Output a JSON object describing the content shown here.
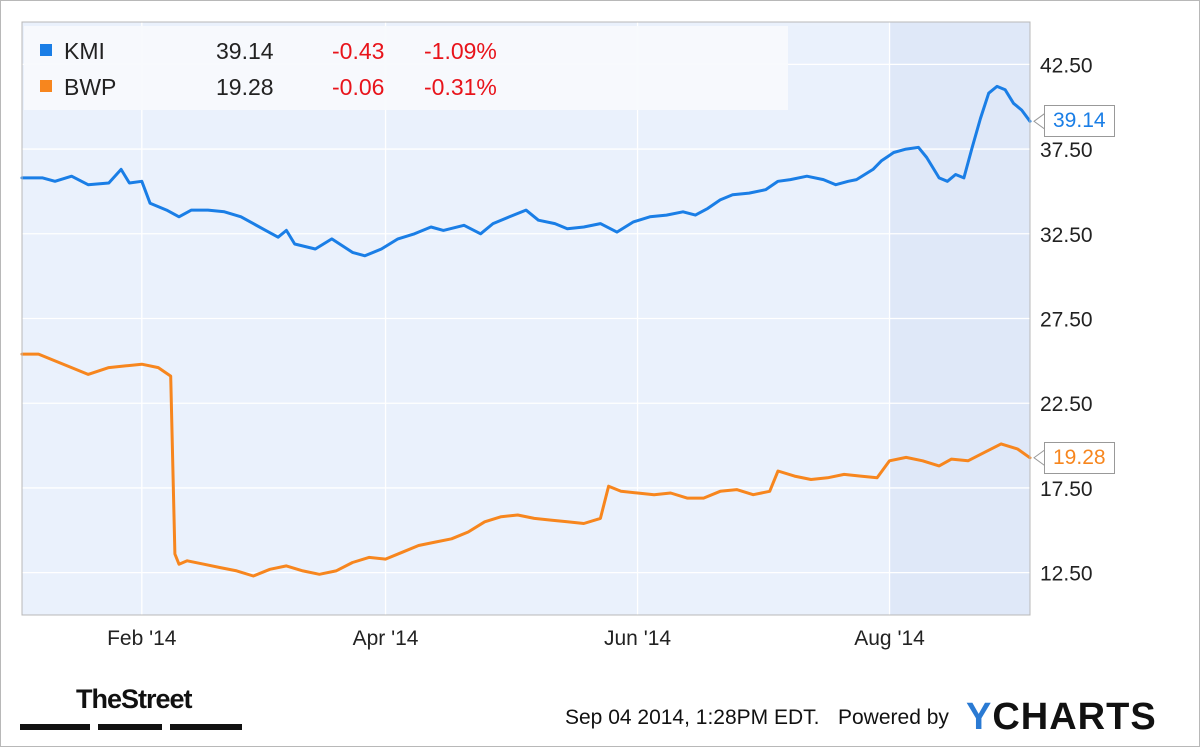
{
  "chart_data": {
    "type": "line",
    "xlim": [
      "2014-01-03",
      "2014-09-04"
    ],
    "ylim": [
      10.0,
      45.0
    ],
    "y_ticks": [
      "42.50",
      "37.50",
      "32.50",
      "27.50",
      "22.50",
      "17.50",
      "12.50"
    ],
    "x_ticks": [
      {
        "date": "2014-02-01",
        "label": "Feb '14"
      },
      {
        "date": "2014-04-01",
        "label": "Apr '14"
      },
      {
        "date": "2014-06-01",
        "label": "Jun '14"
      },
      {
        "date": "2014-08-01",
        "label": "Aug '14"
      }
    ],
    "grid": true,
    "legend": "top-left",
    "series": [
      {
        "name": "KMI",
        "color": "#1a7ee6",
        "last_label": "39.14",
        "points": [
          [
            "2014-01-03",
            35.8
          ],
          [
            "2014-01-08",
            35.8
          ],
          [
            "2014-01-11",
            35.6
          ],
          [
            "2014-01-15",
            35.9
          ],
          [
            "2014-01-19",
            35.4
          ],
          [
            "2014-01-24",
            35.5
          ],
          [
            "2014-01-27",
            36.3
          ],
          [
            "2014-01-29",
            35.5
          ],
          [
            "2014-02-01",
            35.6
          ],
          [
            "2014-02-03",
            34.3
          ],
          [
            "2014-02-07",
            33.9
          ],
          [
            "2014-02-10",
            33.5
          ],
          [
            "2014-02-13",
            33.9
          ],
          [
            "2014-02-17",
            33.9
          ],
          [
            "2014-02-21",
            33.8
          ],
          [
            "2014-02-25",
            33.5
          ],
          [
            "2014-02-28",
            33.1
          ],
          [
            "2014-03-03",
            32.7
          ],
          [
            "2014-03-06",
            32.3
          ],
          [
            "2014-03-08",
            32.7
          ],
          [
            "2014-03-10",
            31.9
          ],
          [
            "2014-03-15",
            31.6
          ],
          [
            "2014-03-19",
            32.2
          ],
          [
            "2014-03-24",
            31.4
          ],
          [
            "2014-03-27",
            31.2
          ],
          [
            "2014-03-31",
            31.6
          ],
          [
            "2014-04-04",
            32.2
          ],
          [
            "2014-04-08",
            32.5
          ],
          [
            "2014-04-12",
            32.9
          ],
          [
            "2014-04-15",
            32.7
          ],
          [
            "2014-04-20",
            33.0
          ],
          [
            "2014-04-24",
            32.5
          ],
          [
            "2014-04-27",
            33.1
          ],
          [
            "2014-05-01",
            33.5
          ],
          [
            "2014-05-05",
            33.9
          ],
          [
            "2014-05-08",
            33.3
          ],
          [
            "2014-05-12",
            33.1
          ],
          [
            "2014-05-15",
            32.8
          ],
          [
            "2014-05-19",
            32.9
          ],
          [
            "2014-05-23",
            33.1
          ],
          [
            "2014-05-27",
            32.6
          ],
          [
            "2014-05-31",
            33.2
          ],
          [
            "2014-06-04",
            33.5
          ],
          [
            "2014-06-08",
            33.6
          ],
          [
            "2014-06-12",
            33.8
          ],
          [
            "2014-06-15",
            33.6
          ],
          [
            "2014-06-18",
            34.0
          ],
          [
            "2014-06-21",
            34.5
          ],
          [
            "2014-06-24",
            34.8
          ],
          [
            "2014-06-28",
            34.9
          ],
          [
            "2014-07-02",
            35.1
          ],
          [
            "2014-07-05",
            35.6
          ],
          [
            "2014-07-08",
            35.7
          ],
          [
            "2014-07-12",
            35.9
          ],
          [
            "2014-07-16",
            35.7
          ],
          [
            "2014-07-19",
            35.4
          ],
          [
            "2014-07-22",
            35.6
          ],
          [
            "2014-07-24",
            35.7
          ],
          [
            "2014-07-28",
            36.3
          ],
          [
            "2014-07-30",
            36.8
          ],
          [
            "2014-08-02",
            37.3
          ],
          [
            "2014-08-05",
            37.5
          ],
          [
            "2014-08-08",
            37.6
          ],
          [
            "2014-08-10",
            37.0
          ],
          [
            "2014-08-12",
            36.2
          ],
          [
            "2014-08-13",
            35.8
          ],
          [
            "2014-08-15",
            35.6
          ],
          [
            "2014-08-17",
            36.0
          ],
          [
            "2014-08-19",
            35.8
          ],
          [
            "2014-08-21",
            37.6
          ],
          [
            "2014-08-23",
            39.3
          ],
          [
            "2014-08-25",
            40.8
          ],
          [
            "2014-08-27",
            41.2
          ],
          [
            "2014-08-29",
            41.0
          ],
          [
            "2014-08-31",
            40.2
          ],
          [
            "2014-09-02",
            39.8
          ],
          [
            "2014-09-04",
            39.14
          ]
        ]
      },
      {
        "name": "BWP",
        "color": "#f7861e",
        "last_label": "19.28",
        "points": [
          [
            "2014-01-03",
            25.4
          ],
          [
            "2014-01-07",
            25.4
          ],
          [
            "2014-01-11",
            25.0
          ],
          [
            "2014-01-15",
            24.6
          ],
          [
            "2014-01-19",
            24.2
          ],
          [
            "2014-01-24",
            24.6
          ],
          [
            "2014-01-28",
            24.7
          ],
          [
            "2014-02-01",
            24.8
          ],
          [
            "2014-02-05",
            24.6
          ],
          [
            "2014-02-08",
            24.1
          ],
          [
            "2014-02-09",
            13.6
          ],
          [
            "2014-02-10",
            13.0
          ],
          [
            "2014-02-12",
            13.2
          ],
          [
            "2014-02-16",
            13.0
          ],
          [
            "2014-02-20",
            12.8
          ],
          [
            "2014-02-24",
            12.6
          ],
          [
            "2014-02-28",
            12.3
          ],
          [
            "2014-03-04",
            12.7
          ],
          [
            "2014-03-08",
            12.9
          ],
          [
            "2014-03-12",
            12.6
          ],
          [
            "2014-03-16",
            12.4
          ],
          [
            "2014-03-20",
            12.6
          ],
          [
            "2014-03-24",
            13.1
          ],
          [
            "2014-03-28",
            13.4
          ],
          [
            "2014-04-01",
            13.3
          ],
          [
            "2014-04-05",
            13.7
          ],
          [
            "2014-04-09",
            14.1
          ],
          [
            "2014-04-13",
            14.3
          ],
          [
            "2014-04-17",
            14.5
          ],
          [
            "2014-04-21",
            14.9
          ],
          [
            "2014-04-25",
            15.5
          ],
          [
            "2014-04-29",
            15.8
          ],
          [
            "2014-05-03",
            15.9
          ],
          [
            "2014-05-07",
            15.7
          ],
          [
            "2014-05-11",
            15.6
          ],
          [
            "2014-05-15",
            15.5
          ],
          [
            "2014-05-19",
            15.4
          ],
          [
            "2014-05-23",
            15.7
          ],
          [
            "2014-05-25",
            17.6
          ],
          [
            "2014-05-28",
            17.3
          ],
          [
            "2014-06-01",
            17.2
          ],
          [
            "2014-06-05",
            17.1
          ],
          [
            "2014-06-09",
            17.2
          ],
          [
            "2014-06-13",
            16.9
          ],
          [
            "2014-06-17",
            16.9
          ],
          [
            "2014-06-21",
            17.3
          ],
          [
            "2014-06-25",
            17.4
          ],
          [
            "2014-06-29",
            17.1
          ],
          [
            "2014-07-03",
            17.3
          ],
          [
            "2014-07-05",
            18.5
          ],
          [
            "2014-07-09",
            18.2
          ],
          [
            "2014-07-13",
            18.0
          ],
          [
            "2014-07-17",
            18.1
          ],
          [
            "2014-07-21",
            18.3
          ],
          [
            "2014-07-25",
            18.2
          ],
          [
            "2014-07-29",
            18.1
          ],
          [
            "2014-08-01",
            19.1
          ],
          [
            "2014-08-05",
            19.3
          ],
          [
            "2014-08-09",
            19.1
          ],
          [
            "2014-08-13",
            18.8
          ],
          [
            "2014-08-16",
            19.2
          ],
          [
            "2014-08-20",
            19.1
          ],
          [
            "2014-08-24",
            19.6
          ],
          [
            "2014-08-28",
            20.1
          ],
          [
            "2014-09-01",
            19.8
          ],
          [
            "2014-09-04",
            19.28
          ]
        ]
      }
    ]
  },
  "legend": {
    "rows": [
      {
        "symbol": "KMI",
        "price": "39.14",
        "change": "-0.43",
        "pct": "-1.09%"
      },
      {
        "symbol": "BWP",
        "price": "19.28",
        "change": "-0.06",
        "pct": "-0.31%"
      }
    ]
  },
  "footer": {
    "timestamp": "Sep 04 2014, 1:28PM EDT.",
    "powered_by": "Powered by",
    "brand_y": "Y",
    "brand_rest": "CHARTS",
    "publisher": "TheStreet"
  }
}
